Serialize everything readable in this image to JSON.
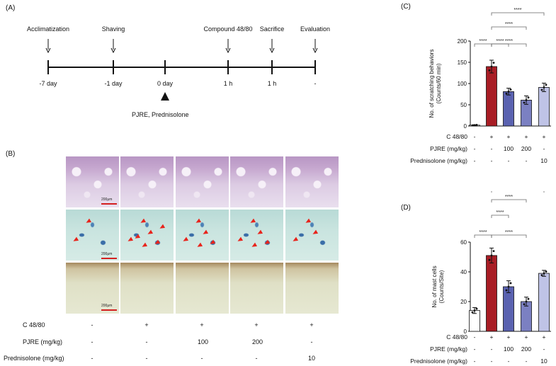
{
  "panelA": {
    "label": "(A)",
    "events": [
      {
        "top": "Acclimatization",
        "bottom": "-7 day",
        "arrow": true
      },
      {
        "top": "Shaving",
        "bottom": "-1 day",
        "arrow": true
      },
      {
        "top": "",
        "bottom": "0 day",
        "arrow": false
      },
      {
        "top": "Compound 48/80",
        "bottom": "1 h",
        "arrow": true
      },
      {
        "top": "Sacrifice",
        "bottom": "1 h",
        "arrow": true
      },
      {
        "top": "Evaluation",
        "bottom": "-",
        "arrow": true
      }
    ],
    "treatment": "PJRE, Prednisolone"
  },
  "panelB": {
    "label": "(B)",
    "scale_bar": "200μm",
    "rows": [
      {
        "label": "C 48/80",
        "values": [
          "-",
          "+",
          "+",
          "+",
          "+"
        ]
      },
      {
        "label": "PJRE (mg/kg)",
        "values": [
          "-",
          "-",
          "100",
          "200",
          "-"
        ]
      },
      {
        "label": "Prednisolone (mg/kg)",
        "values": [
          "-",
          "-",
          "-",
          "-",
          "10"
        ]
      }
    ],
    "arrow_counts": [
      2,
      7,
      5,
      5,
      3
    ]
  },
  "chart_data": [
    {
      "type": "bar",
      "panel": "(C)",
      "title": "",
      "ylabel": "No. of scratching behaviors\n(Counts/60 min)",
      "ylim": [
        0,
        200
      ],
      "yticks": [
        0,
        50,
        100,
        150,
        200
      ],
      "values": [
        2,
        140,
        81,
        61,
        91
      ],
      "errors": [
        1,
        15,
        8,
        10,
        10
      ],
      "colors": [
        "#ffffff",
        "#a81d25",
        "#5a62b0",
        "#7b80c2",
        "#bfc3e6"
      ],
      "significance": [
        {
          "from": 0,
          "to": 1,
          "label": "****"
        },
        {
          "from": 1,
          "to": 2,
          "label": "****"
        },
        {
          "from": 1,
          "to": 3,
          "label": "****"
        },
        {
          "from": 1,
          "to": 4,
          "label": "****"
        },
        {
          "from": 1,
          "to": 3,
          "label": "****"
        }
      ],
      "rows": [
        {
          "label": "C 48/80",
          "values": [
            "-",
            "+",
            "+",
            "+",
            "+"
          ]
        },
        {
          "label": "PJRE (mg/kg)",
          "values": [
            "-",
            "-",
            "100",
            "200",
            "-"
          ]
        },
        {
          "label": "Prednisolone (mg/kg)",
          "values": [
            "-",
            "-",
            "-",
            "-",
            "10"
          ]
        }
      ]
    },
    {
      "type": "bar",
      "panel": "(D)",
      "title": "",
      "ylabel": "No. of mast cells\n(Counts/Site)",
      "ylim": [
        0,
        60
      ],
      "yticks": [
        0,
        20,
        40,
        60
      ],
      "values": [
        14,
        51,
        30,
        20,
        39
      ],
      "errors": [
        2,
        5,
        4,
        3,
        2
      ],
      "colors": [
        "#ffffff",
        "#a81d25",
        "#5a62b0",
        "#7b80c2",
        "#bfc3e6"
      ],
      "significance": [
        {
          "from": 0,
          "to": 1,
          "label": "****"
        },
        {
          "from": 1,
          "to": 2,
          "label": "****"
        },
        {
          "from": 1,
          "to": 3,
          "label": "****"
        },
        {
          "from": 1,
          "to": 4,
          "label": "****"
        },
        {
          "from": 1,
          "to": 3,
          "label": "****"
        }
      ],
      "rows": [
        {
          "label": "C 48/80",
          "values": [
            "-",
            "+",
            "+",
            "+",
            "+"
          ]
        },
        {
          "label": "PJRE (mg/kg)",
          "values": [
            "-",
            "-",
            "100",
            "200",
            "-"
          ]
        },
        {
          "label": "Prednisolone (mg/kg)",
          "values": [
            "-",
            "-",
            "-",
            "-",
            "10"
          ]
        }
      ]
    }
  ]
}
